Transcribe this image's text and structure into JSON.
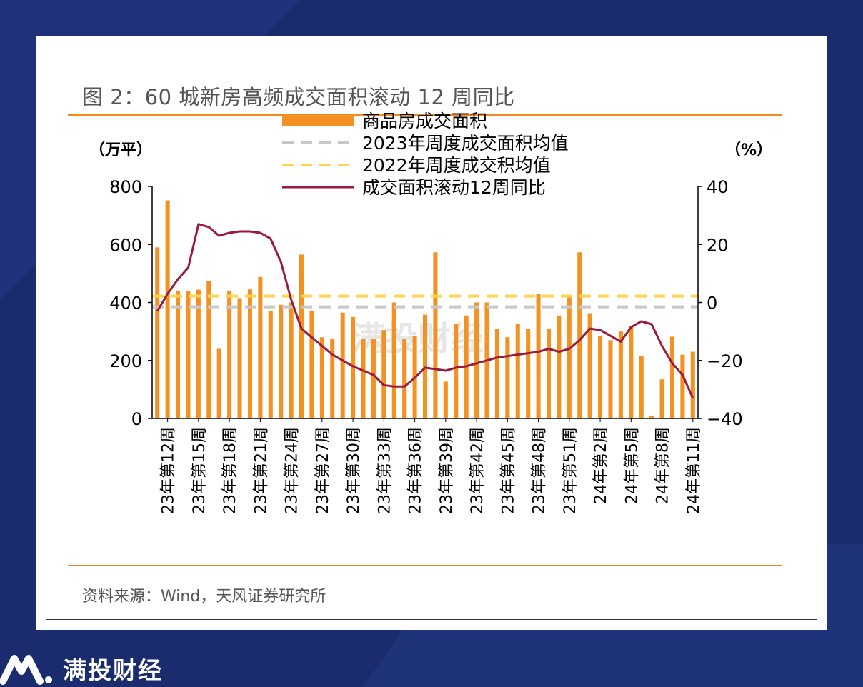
{
  "page": {
    "title": "图 2：60 城新房高频成交面积滚动 12 周同比",
    "source": "资料来源：Wind，天风证券研究所",
    "brand": "满投财经",
    "watermark": "满投财经",
    "brand_logo_icon": "mantou-logo-icon"
  },
  "chart_data": {
    "type": "bar",
    "left_unit": "（万平）",
    "right_unit": "（%）",
    "yticks_left": [
      "800",
      "600",
      "400",
      "200",
      "0"
    ],
    "yticks_right": [
      "40",
      "20",
      "0",
      "−20",
      "−40"
    ],
    "ylim_left": [
      0,
      800
    ],
    "ylim_right": [
      -40,
      40
    ],
    "grid": false,
    "legend_position": "top-center",
    "colors": {
      "bar": "#f39122",
      "avg2023": "#c8c8c8",
      "avg2022": "#ffd54f",
      "line": "#9b1b3c"
    },
    "legend": [
      {
        "key": "bar",
        "label": "商品房成交面积"
      },
      {
        "key": "avg2023",
        "label": "2023年周度成交面积均值"
      },
      {
        "key": "avg2022",
        "label": "2022年周度成交积均值"
      },
      {
        "key": "line",
        "label": "成交面积滚动12周同比"
      }
    ],
    "xticks": [
      "23年第12周",
      "23年第15周",
      "23年第18周",
      "23年第21周",
      "23年第24周",
      "23年第27周",
      "23年第30周",
      "23年第33周",
      "23年第36周",
      "23年第39周",
      "23年第42周",
      "23年第45周",
      "23年第48周",
      "23年第51周",
      "24年第2周",
      "24年第5周",
      "24年第8周",
      "24年第11周"
    ],
    "categories": [
      "23W11",
      "23W12",
      "23W13",
      "23W14",
      "23W15",
      "23W16",
      "23W17",
      "23W18",
      "23W19",
      "23W20",
      "23W21",
      "23W22",
      "23W23",
      "23W24",
      "23W25",
      "23W26",
      "23W27",
      "23W28",
      "23W29",
      "23W30",
      "23W31",
      "23W32",
      "23W33",
      "23W34",
      "23W35",
      "23W36",
      "23W37",
      "23W38",
      "23W39",
      "23W40",
      "23W41",
      "23W42",
      "23W43",
      "23W44",
      "23W45",
      "23W46",
      "23W47",
      "23W48",
      "23W49",
      "23W50",
      "23W51",
      "23W52",
      "24W1",
      "24W2",
      "24W3",
      "24W4",
      "24W5",
      "24W6",
      "24W7",
      "24W8",
      "24W9",
      "24W10",
      "24W11"
    ],
    "bars": [
      590,
      752,
      440,
      438,
      444,
      475,
      240,
      438,
      415,
      445,
      488,
      372,
      392,
      400,
      565,
      372,
      280,
      275,
      365,
      350,
      275,
      275,
      305,
      400,
      275,
      285,
      358,
      573,
      127,
      325,
      355,
      400,
      400,
      310,
      280,
      325,
      310,
      430,
      310,
      355,
      420,
      573,
      363,
      285,
      270,
      300,
      320,
      215,
      10,
      135,
      282,
      220,
      230
    ],
    "yoy": [
      -3,
      3,
      8,
      12,
      27,
      26,
      23,
      24,
      24.5,
      24.5,
      24,
      22,
      14,
      1,
      -9,
      -12,
      -15,
      -18,
      -20,
      -22,
      -23.5,
      -25,
      -28.5,
      -29,
      -29,
      -26,
      -22.5,
      -23,
      -23.5,
      -22.5,
      -22,
      -21,
      -20,
      -19,
      -18.5,
      -18,
      -17.5,
      -17,
      -16,
      -17,
      -16,
      -13,
      -9,
      -9.5,
      -11.5,
      -13.5,
      -8.5,
      -6.5,
      -7.5,
      -15,
      -21,
      -25,
      -33
    ],
    "avg2023": 385,
    "avg2022": 422
  }
}
